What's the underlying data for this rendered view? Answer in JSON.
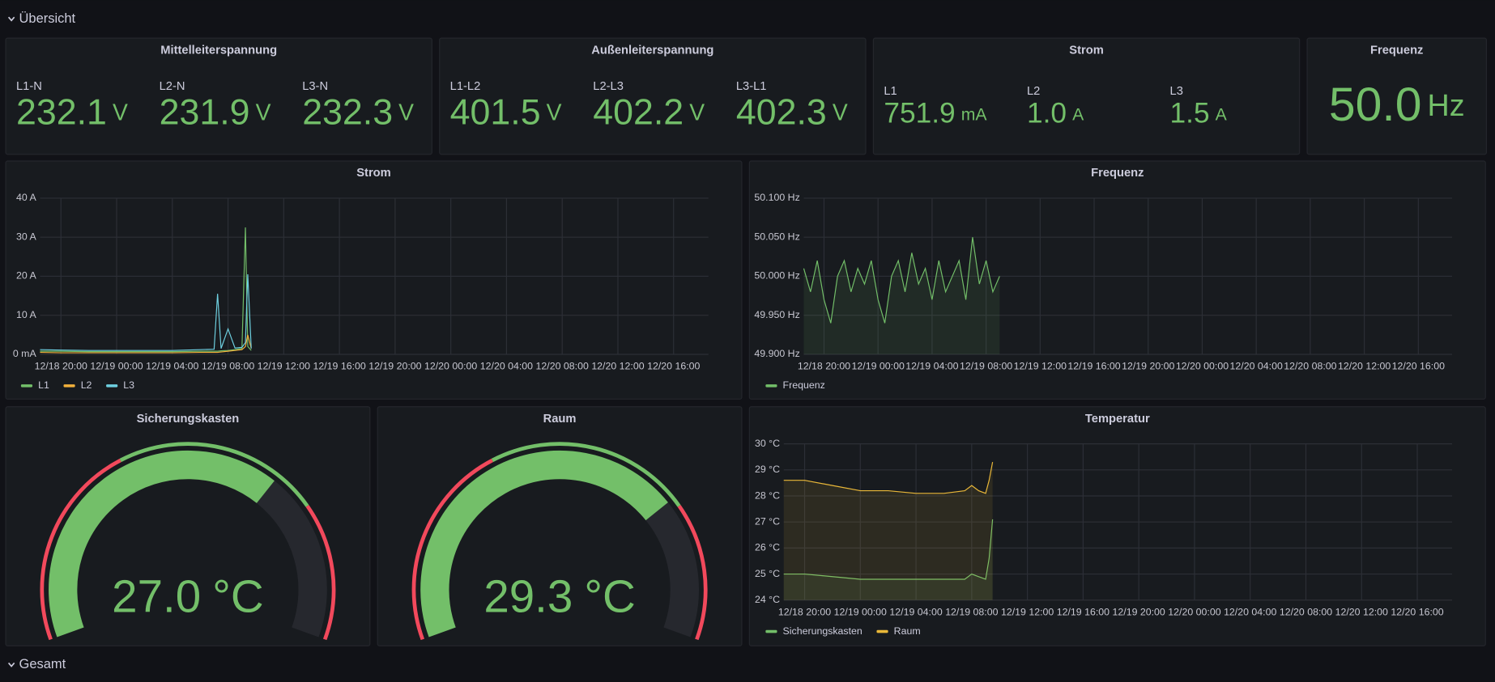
{
  "rows": [
    {
      "title": "Übersicht"
    },
    {
      "title": "Gesamt"
    }
  ],
  "stat_panels": [
    {
      "title": "Mittelleiterspannung",
      "items": [
        {
          "label": "L1-N",
          "value": "232.1",
          "unit": "V"
        },
        {
          "label": "L2-N",
          "value": "231.9",
          "unit": "V"
        },
        {
          "label": "L3-N",
          "value": "232.3",
          "unit": "V"
        }
      ]
    },
    {
      "title": "Außenleiterspannung",
      "items": [
        {
          "label": "L1-L2",
          "value": "401.5",
          "unit": "V"
        },
        {
          "label": "L2-L3",
          "value": "402.2",
          "unit": "V"
        },
        {
          "label": "L3-L1",
          "value": "402.3",
          "unit": "V"
        }
      ]
    },
    {
      "title": "Strom",
      "items": [
        {
          "label": "L1",
          "value": "751.9",
          "unit": "mA"
        },
        {
          "label": "L2",
          "value": "1.0",
          "unit": "A"
        },
        {
          "label": "L3",
          "value": "1.5",
          "unit": "A"
        }
      ]
    },
    {
      "title": "Frequenz",
      "items": [
        {
          "value": "50.0",
          "unit": "Hz"
        }
      ]
    }
  ],
  "stat_color": "#73bf69",
  "chart_panels": [
    {
      "chart_data": {
        "type": "line",
        "title": "Strom",
        "fill": false,
        "grid": true,
        "legend": "bottom-left",
        "x": [
          "12/18 18:30",
          "12/18 20:00",
          "12/18 22:00",
          "12/19 00:00",
          "12/19 02:00",
          "12/19 04:00",
          "12/19 06:00",
          "12/19 07:00",
          "12/19 07:15",
          "12/19 07:30",
          "12/19 08:00",
          "12/19 08:30",
          "12/19 09:00",
          "12/19 09:15",
          "12/19 09:25",
          "12/19 09:40"
        ],
        "series": [
          {
            "name": "L1",
            "color": "#73bf69",
            "values": [
              0.8,
              0.8,
              0.7,
              0.7,
              0.7,
              0.7,
              0.8,
              0.8,
              0.8,
              0.9,
              1.0,
              1.2,
              1.5,
              32.5,
              2,
              1.0
            ]
          },
          {
            "name": "L2",
            "color": "#f2b13b",
            "values": [
              0.5,
              0.4,
              0.4,
              0.4,
              0.4,
              0.4,
              0.5,
              0.5,
              0.5,
              0.6,
              0.8,
              1,
              1.2,
              2,
              5,
              1.5
            ]
          },
          {
            "name": "L3",
            "color": "#6ed0e0",
            "values": [
              1.2,
              1.1,
              1.0,
              1.0,
              1.0,
              1.0,
              1.2,
              1.3,
              15.5,
              1.5,
              6.5,
              1.6,
              1.8,
              3,
              20.5,
              1.5
            ]
          }
        ],
        "xlim": [
          "12/18 18:30",
          "12/20 18:30"
        ],
        "xticks": [
          "12/18 20:00",
          "12/19 00:00",
          "12/19 04:00",
          "12/19 08:00",
          "12/19 12:00",
          "12/19 16:00",
          "12/19 20:00",
          "12/20 00:00",
          "12/20 04:00",
          "12/20 08:00",
          "12/20 12:00",
          "12/20 16:00"
        ],
        "ylim": [
          0,
          40
        ],
        "yticks": [
          {
            "value": 0,
            "label": "0 mA"
          },
          {
            "value": 10,
            "label": "10 A"
          },
          {
            "value": 20,
            "label": "20 A"
          },
          {
            "value": 30,
            "label": "30 A"
          },
          {
            "value": 40,
            "label": "40 A"
          }
        ]
      }
    },
    {
      "chart_data": {
        "type": "line",
        "title": "Frequenz",
        "fill": true,
        "grid": true,
        "legend": "bottom-left",
        "x": [
          "12/18 18:30",
          "12/18 19:00",
          "12/18 19:30",
          "12/18 20:00",
          "12/18 20:30",
          "12/18 21:00",
          "12/18 21:30",
          "12/18 22:00",
          "12/18 22:30",
          "12/18 23:00",
          "12/18 23:30",
          "12/19 00:00",
          "12/19 00:30",
          "12/19 01:00",
          "12/19 01:30",
          "12/19 02:00",
          "12/19 02:30",
          "12/19 03:00",
          "12/19 03:30",
          "12/19 04:00",
          "12/19 04:30",
          "12/19 05:00",
          "12/19 05:30",
          "12/19 06:00",
          "12/19 06:30",
          "12/19 07:00",
          "12/19 07:30",
          "12/19 08:00",
          "12/19 08:30",
          "12/19 09:00"
        ],
        "series": [
          {
            "name": "Frequenz",
            "color": "#73bf69",
            "values": [
              50.01,
              49.98,
              50.02,
              49.97,
              49.94,
              50.0,
              50.02,
              49.98,
              50.01,
              49.99,
              50.02,
              49.97,
              49.94,
              50.0,
              50.02,
              49.98,
              50.03,
              49.99,
              50.01,
              49.97,
              50.02,
              49.98,
              50.0,
              50.02,
              49.97,
              50.05,
              49.99,
              50.02,
              49.98,
              50.0
            ]
          }
        ],
        "xlim": [
          "12/18 18:30",
          "12/20 18:30"
        ],
        "xticks": [
          "12/18 20:00",
          "12/19 00:00",
          "12/19 04:00",
          "12/19 08:00",
          "12/19 12:00",
          "12/19 16:00",
          "12/19 20:00",
          "12/20 00:00",
          "12/20 04:00",
          "12/20 08:00",
          "12/20 12:00",
          "12/20 16:00"
        ],
        "ylim": [
          49.9,
          50.1
        ],
        "yticks": [
          {
            "value": 49.9,
            "label": "49.900 Hz"
          },
          {
            "value": 49.95,
            "label": "49.950 Hz"
          },
          {
            "value": 50,
            "label": "50.000 Hz"
          },
          {
            "value": 50.05,
            "label": "50.050 Hz"
          },
          {
            "value": 50.1,
            "label": "50.100 Hz"
          }
        ]
      }
    },
    {
      "chart_data": {
        "type": "line",
        "title": "Temperatur",
        "fill": true,
        "grid": true,
        "legend": "bottom-left",
        "x": [
          "12/18 18:30",
          "12/18 20:00",
          "12/18 22:00",
          "12/19 00:00",
          "12/19 02:00",
          "12/19 04:00",
          "12/19 06:00",
          "12/19 07:30",
          "12/19 08:00",
          "12/19 08:30",
          "12/19 09:00",
          "12/19 09:15",
          "12/19 09:30"
        ],
        "series": [
          {
            "name": "Sicherungskasten",
            "color": "#73bf69",
            "values": [
              25.0,
              25.0,
              24.9,
              24.8,
              24.8,
              24.8,
              24.8,
              24.8,
              25.0,
              24.9,
              24.8,
              25.6,
              27.1
            ]
          },
          {
            "name": "Raum",
            "color": "#eab839",
            "values": [
              28.6,
              28.6,
              28.4,
              28.2,
              28.2,
              28.1,
              28.1,
              28.2,
              28.4,
              28.2,
              28.1,
              28.6,
              29.3
            ]
          }
        ],
        "xlim": [
          "12/18 18:30",
          "12/20 18:30"
        ],
        "xticks": [
          "12/18 20:00",
          "12/19 00:00",
          "12/19 04:00",
          "12/19 08:00",
          "12/19 12:00",
          "12/19 16:00",
          "12/19 20:00",
          "12/20 00:00",
          "12/20 04:00",
          "12/20 08:00",
          "12/20 12:00",
          "12/20 16:00"
        ],
        "ylim": [
          24,
          30
        ],
        "yticks": [
          {
            "value": 24,
            "label": "24 °C"
          },
          {
            "value": 25,
            "label": "25 °C"
          },
          {
            "value": 26,
            "label": "26 °C"
          },
          {
            "value": 27,
            "label": "27 °C"
          },
          {
            "value": 28,
            "label": "28 °C"
          },
          {
            "value": 29,
            "label": "29 °C"
          },
          {
            "value": 30,
            "label": "30 °C"
          }
        ]
      }
    }
  ],
  "gauge_panels": [
    {
      "title": "Sicherungskasten",
      "value": "27.0",
      "unit": "°C",
      "min": 0,
      "max": 40,
      "thresholds": [
        15,
        30
      ],
      "threshold_colors": [
        "#f2495c",
        "#73bf69",
        "#f2495c"
      ]
    },
    {
      "title": "Raum",
      "value": "29.3",
      "unit": "°C",
      "min": 0,
      "max": 40,
      "thresholds": [
        15,
        30
      ],
      "threshold_colors": [
        "#f2495c",
        "#73bf69",
        "#f2495c"
      ]
    }
  ]
}
